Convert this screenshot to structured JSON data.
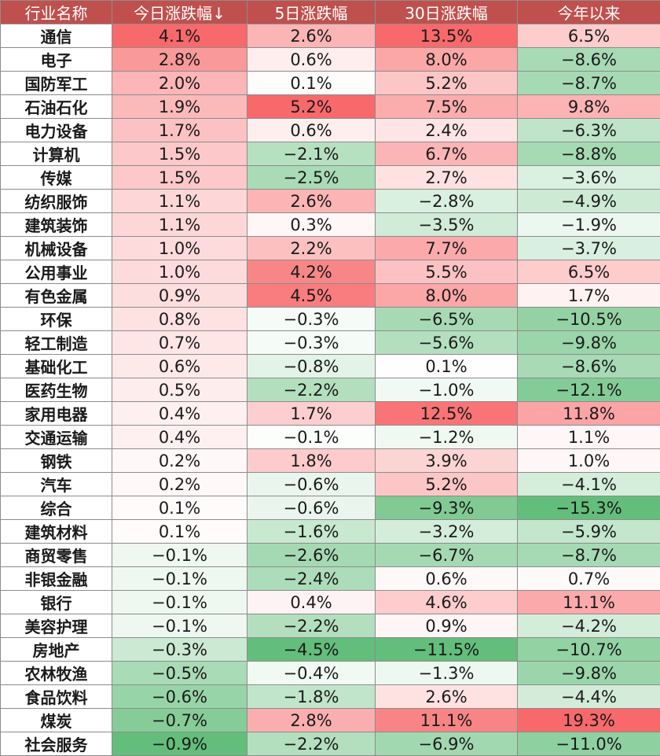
{
  "chart_data": {
    "type": "table",
    "columns": [
      "行业名称",
      "今日涨跌幅↓",
      "5日涨跌幅",
      "30日涨跌幅",
      "今年以来"
    ],
    "rows": [
      {
        "name": "通信",
        "values": [
          4.1,
          2.6,
          13.5,
          6.5
        ]
      },
      {
        "name": "电子",
        "values": [
          2.8,
          0.6,
          8.0,
          -8.6
        ]
      },
      {
        "name": "国防军工",
        "values": [
          2.0,
          0.1,
          5.2,
          -8.7
        ]
      },
      {
        "name": "石油石化",
        "values": [
          1.9,
          5.2,
          7.5,
          9.8
        ]
      },
      {
        "name": "电力设备",
        "values": [
          1.7,
          0.6,
          2.4,
          -6.3
        ]
      },
      {
        "name": "计算机",
        "values": [
          1.5,
          -2.1,
          6.7,
          -8.8
        ]
      },
      {
        "name": "传媒",
        "values": [
          1.5,
          -2.5,
          2.7,
          -3.6
        ]
      },
      {
        "name": "纺织服饰",
        "values": [
          1.1,
          2.6,
          -2.8,
          -4.9
        ]
      },
      {
        "name": "建筑装饰",
        "values": [
          1.1,
          0.3,
          -3.5,
          -1.9
        ]
      },
      {
        "name": "机械设备",
        "values": [
          1.0,
          2.2,
          7.7,
          -3.7
        ]
      },
      {
        "name": "公用事业",
        "values": [
          1.0,
          4.2,
          5.5,
          6.5
        ]
      },
      {
        "name": "有色金属",
        "values": [
          0.9,
          4.5,
          8.0,
          1.7
        ]
      },
      {
        "name": "环保",
        "values": [
          0.8,
          -0.3,
          -6.5,
          -10.5
        ]
      },
      {
        "name": "轻工制造",
        "values": [
          0.7,
          -0.3,
          -5.6,
          -9.8
        ]
      },
      {
        "name": "基础化工",
        "values": [
          0.6,
          -0.8,
          0.1,
          -8.6
        ]
      },
      {
        "name": "医药生物",
        "values": [
          0.5,
          -2.2,
          -1.0,
          -12.1
        ]
      },
      {
        "name": "家用电器",
        "values": [
          0.4,
          1.7,
          12.5,
          11.8
        ]
      },
      {
        "name": "交通运输",
        "values": [
          0.4,
          -0.1,
          -1.2,
          1.1
        ]
      },
      {
        "name": "钢铁",
        "values": [
          0.2,
          1.8,
          3.9,
          1.0
        ]
      },
      {
        "name": "汽车",
        "values": [
          0.2,
          -0.6,
          5.2,
          -4.1
        ]
      },
      {
        "name": "综合",
        "values": [
          0.1,
          -0.6,
          -9.3,
          -15.3
        ]
      },
      {
        "name": "建筑材料",
        "values": [
          0.1,
          -1.6,
          -3.2,
          -5.9
        ]
      },
      {
        "name": "商贸零售",
        "values": [
          -0.1,
          -2.6,
          -6.7,
          -8.7
        ]
      },
      {
        "name": "非银金融",
        "values": [
          -0.1,
          -2.4,
          0.6,
          0.7
        ]
      },
      {
        "name": "银行",
        "values": [
          -0.1,
          0.4,
          4.6,
          11.1
        ]
      },
      {
        "name": "美容护理",
        "values": [
          -0.1,
          -2.2,
          0.9,
          -4.2
        ]
      },
      {
        "name": "房地产",
        "values": [
          -0.3,
          -4.5,
          -11.5,
          -10.7
        ]
      },
      {
        "name": "农林牧渔",
        "values": [
          -0.5,
          -0.4,
          -1.3,
          -9.8
        ]
      },
      {
        "name": "食品饮料",
        "values": [
          -0.6,
          -1.8,
          2.6,
          -4.4
        ]
      },
      {
        "name": "煤炭",
        "values": [
          -0.7,
          2.8,
          11.1,
          19.3
        ]
      },
      {
        "name": "社会服务",
        "values": [
          -0.9,
          -2.2,
          -6.9,
          -11.0
        ]
      }
    ],
    "value_unit": "%",
    "colors": {
      "header_bg": "#c0504d",
      "header_text": "#ffffff",
      "positive_max": "#f8696b",
      "negative_max": "#63be7b",
      "neutral": "#ffffff",
      "grid": "#8c8c8c"
    }
  }
}
